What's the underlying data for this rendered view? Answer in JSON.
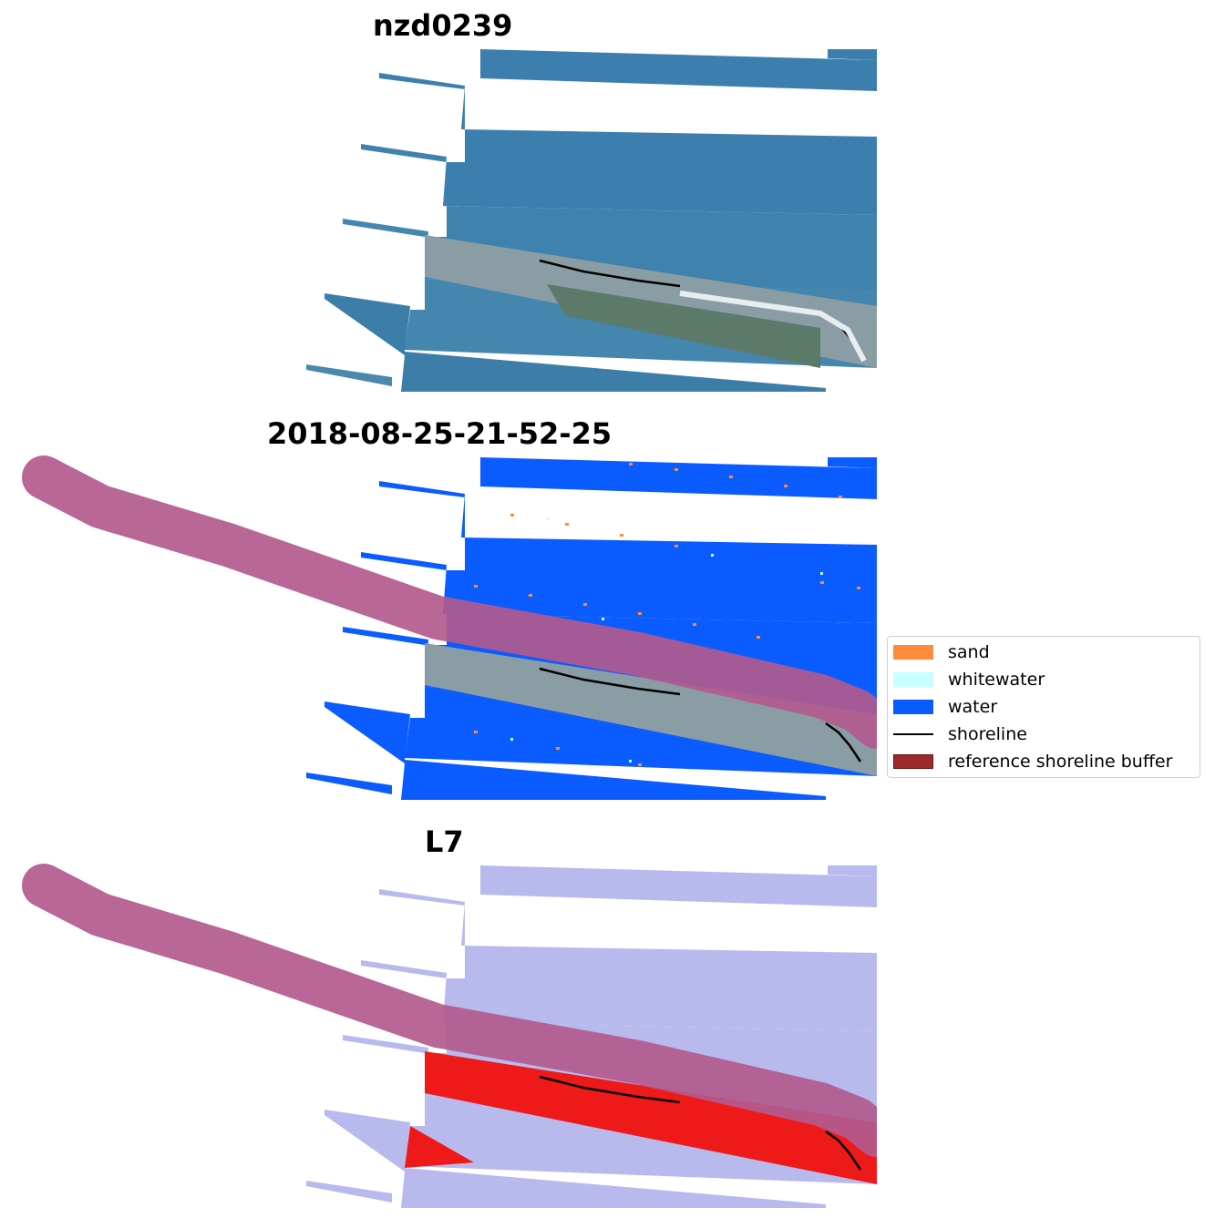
{
  "panels": [
    {
      "title": "nzd0239",
      "kind": "rgb-image"
    },
    {
      "title": "2018-08-25-21-52-25",
      "kind": "classified-image"
    },
    {
      "title": "L7",
      "kind": "index-image"
    }
  ],
  "legend": {
    "items": [
      {
        "label": "sand",
        "color": "#ff8c3a",
        "symbol": "patch"
      },
      {
        "label": "whitewater",
        "color": "#c8ffff",
        "symbol": "patch"
      },
      {
        "label": "water",
        "color": "#0a5cff",
        "symbol": "patch"
      },
      {
        "label": "shoreline",
        "color": "#000000",
        "symbol": "line"
      },
      {
        "label": "reference shoreline buffer",
        "color": "#9c2a2a",
        "symbol": "patch"
      }
    ]
  },
  "colors": {
    "rgb_water": "#3c7fae",
    "rgb_land": "#8a9da5",
    "rgb_vegetation": "#5c7a6a",
    "classified_water": "#0a5cff",
    "buffer": "#b25a8e",
    "index_water": "#b8baee",
    "index_high": "#ee1a1a",
    "shoreline": "#000000"
  }
}
